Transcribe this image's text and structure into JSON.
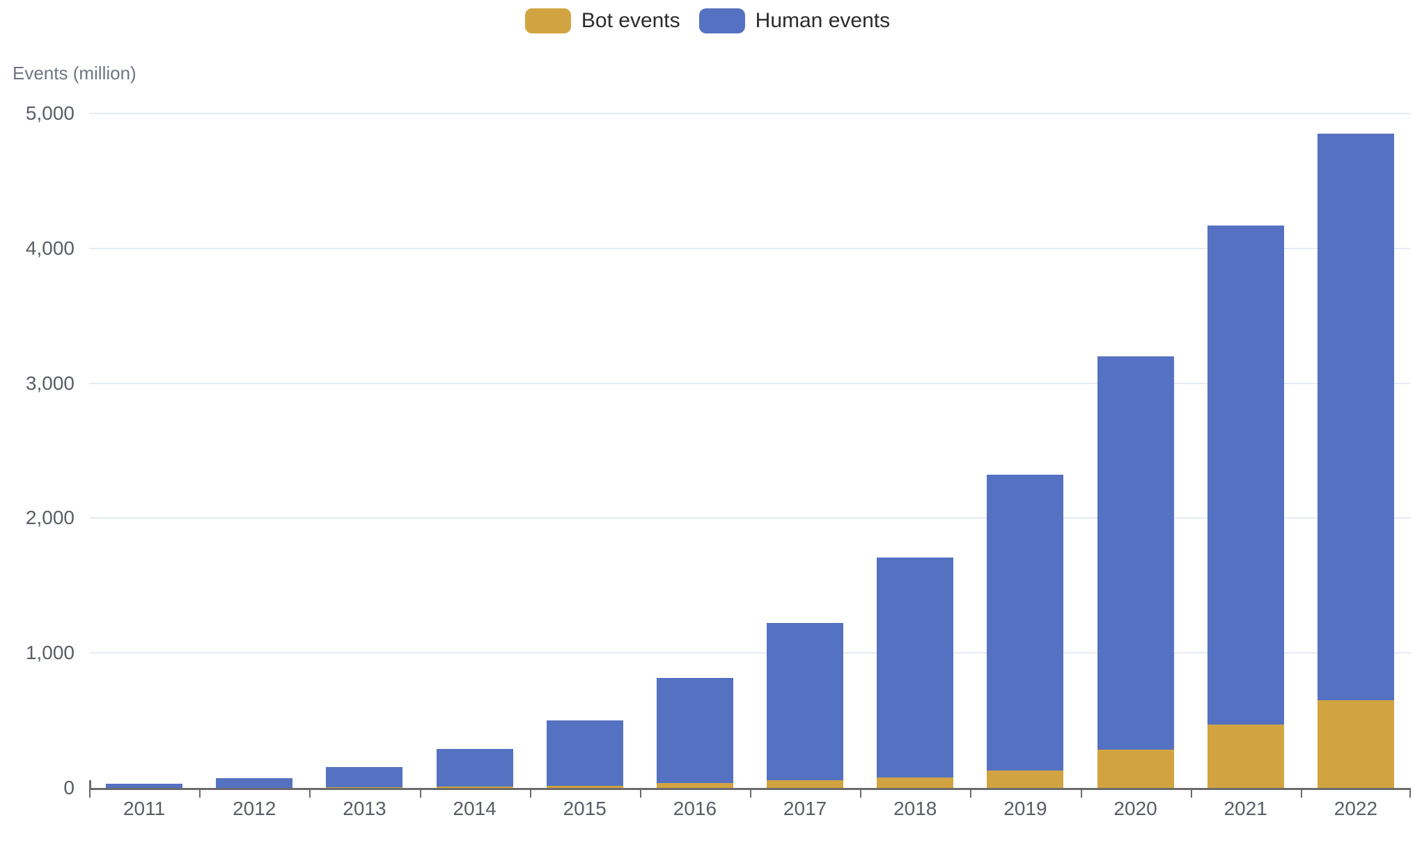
{
  "chart_data": {
    "type": "bar",
    "stacked": true,
    "title": "",
    "xlabel": "",
    "ylabel": "Events (million)",
    "categories": [
      "2011",
      "2012",
      "2013",
      "2014",
      "2015",
      "2016",
      "2017",
      "2018",
      "2019",
      "2020",
      "2021",
      "2022"
    ],
    "series": [
      {
        "name": "Bot events",
        "color": "#D2A441",
        "values": [
          1,
          2,
          4,
          8,
          15,
          35,
          55,
          80,
          127,
          283,
          470,
          650
        ]
      },
      {
        "name": "Human events",
        "color": "#5571C1",
        "values": [
          30,
          71,
          151,
          282,
          487,
          780,
          1170,
          1630,
          2193,
          2917,
          3700,
          4200
        ]
      }
    ],
    "totals": [
      31,
      73,
      155,
      290,
      502,
      815,
      1225,
      1710,
      2320,
      3200,
      4170,
      4850
    ],
    "ylim": [
      0,
      5000
    ],
    "yticks": [
      {
        "value": 0,
        "label": "0"
      },
      {
        "value": 1000,
        "label": "1,000"
      },
      {
        "value": 2000,
        "label": "2,000"
      },
      {
        "value": 3000,
        "label": "3,000"
      },
      {
        "value": 4000,
        "label": "4,000"
      },
      {
        "value": 5000,
        "label": "5,000"
      }
    ],
    "grid": "horizontal",
    "legend_position": "top-center"
  },
  "style": {
    "background": "#FFFFFF",
    "grid_color": "#E5EAF4",
    "axis_color": "#6B6B6B",
    "tick_label_color": "#595D66",
    "legend_text_color": "#2B2B2B",
    "ylabel_color": "#6F7480",
    "bot_color": "#D2A441",
    "human_color": "#5571C1"
  }
}
